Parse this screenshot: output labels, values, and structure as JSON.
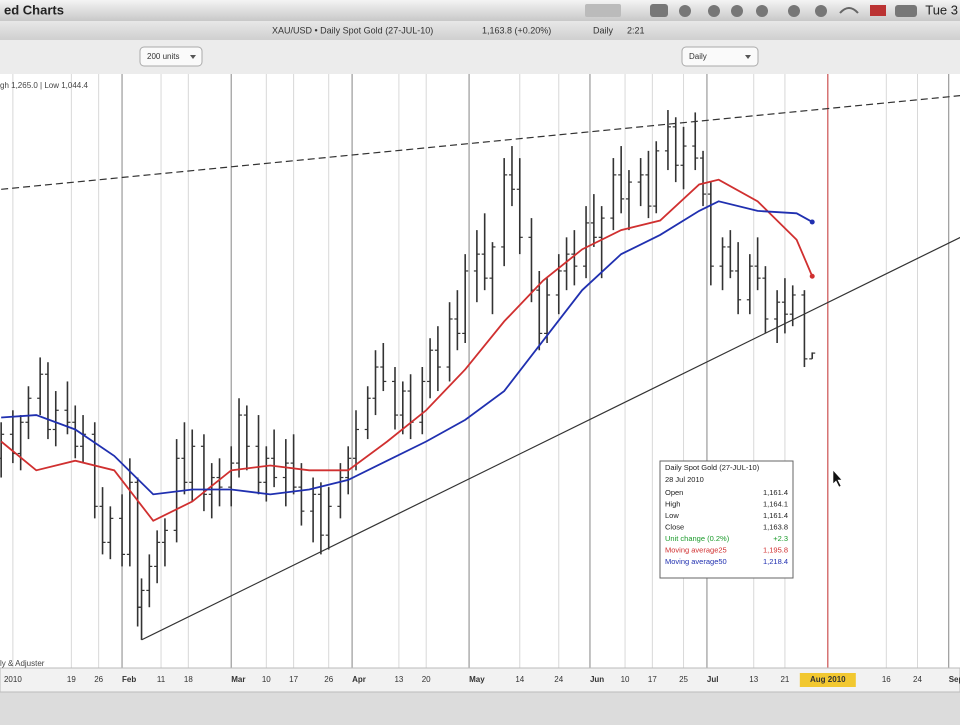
{
  "window": {
    "title": "ed Charts",
    "clock": "Tue 3"
  },
  "header": {
    "symbol": "XAU/USD • Daily Spot Gold (27-JUL-10)",
    "price": "1,163.8 (+0.20%)",
    "period": "Daily",
    "time": "2:21"
  },
  "toolbar": {
    "range": "200 units",
    "interval": "Daily"
  },
  "tooltip": {
    "title": "Daily Spot Gold (27-JUL-10)",
    "date": "28 Jul 2010",
    "rows": [
      {
        "label": "Open",
        "value": "1,161.4",
        "color": "#222222"
      },
      {
        "label": "High",
        "value": "1,164.1",
        "color": "#222222"
      },
      {
        "label": "Low",
        "value": "1,161.4",
        "color": "#222222"
      },
      {
        "label": "Close",
        "value": "1,163.8",
        "color": "#222222"
      },
      {
        "label": "Unit change (0.2%)",
        "value": "+2.3",
        "color": "#1a9a2a"
      },
      {
        "label": "Moving average25",
        "value": "1,195.8",
        "color": "#d03030"
      },
      {
        "label": "Moving average50",
        "value": "1,218.4",
        "color": "#2030b0"
      }
    ]
  },
  "chart_data": {
    "type": "ohlc",
    "range_label": "gh 1,265.0 | Low 1,044.4",
    "note": "ly & Adjuster",
    "color": "#333333",
    "x": [
      1,
      4,
      6,
      8,
      11,
      13,
      15,
      18,
      20,
      22,
      25,
      27,
      29,
      32,
      34,
      36,
      37,
      39,
      41,
      43,
      46,
      48,
      50,
      53,
      55,
      57,
      60,
      62,
      64,
      67,
      69,
      71,
      74,
      76,
      78,
      81,
      83,
      85,
      88,
      90,
      92,
      95,
      97,
      99,
      102,
      104,
      106,
      109,
      111,
      113,
      116,
      118,
      120,
      123,
      125,
      127,
      130,
      132,
      134,
      137,
      139,
      141,
      144,
      146,
      148,
      151,
      153,
      155,
      158,
      160,
      162,
      165,
      167,
      169,
      172,
      174,
      176,
      179,
      181,
      183,
      186,
      188,
      190,
      193,
      195,
      197,
      200,
      202,
      204,
      207,
      209
    ],
    "open": [
      1120,
      1130,
      1122,
      1135,
      1145,
      1155,
      1132,
      1140,
      1135,
      1125,
      1130,
      1100,
      1085,
      1095,
      1080,
      1110,
      1058,
      1065,
      1075,
      1085,
      1090,
      1120,
      1110,
      1125,
      1105,
      1112,
      1108,
      1118,
      1138,
      1125,
      1110,
      1120,
      1112,
      1118,
      1108,
      1098,
      1105,
      1088,
      1100,
      1112,
      1120,
      1132,
      1145,
      1158,
      1152,
      1138,
      1148,
      1135,
      1152,
      1165,
      1158,
      1178,
      1172,
      1198,
      1205,
      1195,
      1208,
      1238,
      1232,
      1212,
      1190,
      1172,
      1188,
      1198,
      1205,
      1200,
      1218,
      1212,
      1220,
      1238,
      1228,
      1235,
      1238,
      1225,
      1248,
      1258,
      1242,
      1250,
      1245,
      1230,
      1200,
      1208,
      1198,
      1186,
      1200,
      1195,
      1178,
      1185,
      1180,
      1188,
      1161.4
    ],
    "high": [
      1135,
      1140,
      1138,
      1150,
      1162,
      1160,
      1148,
      1152,
      1142,
      1138,
      1135,
      1108,
      1100,
      1105,
      1120,
      1112,
      1070,
      1080,
      1090,
      1095,
      1128,
      1135,
      1132,
      1130,
      1118,
      1120,
      1125,
      1145,
      1142,
      1138,
      1125,
      1132,
      1128,
      1130,
      1118,
      1112,
      1110,
      1108,
      1118,
      1125,
      1140,
      1150,
      1165,
      1168,
      1158,
      1152,
      1155,
      1158,
      1170,
      1175,
      1185,
      1190,
      1205,
      1215,
      1222,
      1210,
      1245,
      1250,
      1245,
      1220,
      1198,
      1195,
      1205,
      1212,
      1215,
      1225,
      1230,
      1225,
      1245,
      1250,
      1240,
      1245,
      1248,
      1252,
      1265,
      1262,
      1258,
      1264,
      1248,
      1235,
      1212,
      1215,
      1210,
      1205,
      1212,
      1200,
      1190,
      1195,
      1192,
      1190,
      1164.1
    ],
    "low": [
      1112,
      1118,
      1115,
      1128,
      1138,
      1128,
      1125,
      1130,
      1120,
      1118,
      1095,
      1080,
      1078,
      1075,
      1075,
      1050,
      1044.4,
      1058,
      1068,
      1075,
      1085,
      1105,
      1102,
      1098,
      1095,
      1100,
      1100,
      1112,
      1115,
      1105,
      1102,
      1108,
      1100,
      1105,
      1092,
      1085,
      1080,
      1082,
      1095,
      1105,
      1115,
      1128,
      1138,
      1148,
      1132,
      1130,
      1128,
      1130,
      1145,
      1148,
      1152,
      1165,
      1168,
      1185,
      1190,
      1180,
      1200,
      1225,
      1205,
      1185,
      1165,
      1168,
      1180,
      1190,
      1192,
      1195,
      1208,
      1195,
      1215,
      1222,
      1215,
      1225,
      1220,
      1222,
      1240,
      1235,
      1232,
      1240,
      1225,
      1192,
      1190,
      1195,
      1180,
      1180,
      1190,
      1172,
      1168,
      1172,
      1175,
      1158,
      1161.4
    ],
    "close": [
      1130,
      1122,
      1135,
      1145,
      1155,
      1132,
      1140,
      1135,
      1125,
      1130,
      1100,
      1085,
      1095,
      1080,
      1110,
      1058,
      1065,
      1075,
      1085,
      1090,
      1120,
      1110,
      1125,
      1105,
      1112,
      1108,
      1118,
      1138,
      1125,
      1110,
      1120,
      1112,
      1118,
      1108,
      1098,
      1105,
      1088,
      1100,
      1112,
      1120,
      1132,
      1145,
      1158,
      1152,
      1138,
      1148,
      1135,
      1152,
      1165,
      1158,
      1178,
      1172,
      1198,
      1205,
      1195,
      1208,
      1238,
      1232,
      1212,
      1190,
      1172,
      1188,
      1198,
      1205,
      1200,
      1218,
      1212,
      1220,
      1238,
      1228,
      1235,
      1238,
      1225,
      1248,
      1258,
      1242,
      1250,
      1245,
      1230,
      1200,
      1208,
      1198,
      1186,
      1200,
      1195,
      1178,
      1185,
      1180,
      1188,
      1161.4,
      1163.8
    ],
    "series": [
      {
        "color": "#d03030",
        "x": [
          1,
          10,
          20,
          30,
          40,
          50,
          60,
          70,
          80,
          90,
          100,
          110,
          120,
          130,
          140,
          150,
          160,
          170,
          180,
          185,
          195,
          205,
          209
        ],
        "values": [
          1127,
          1115,
          1119,
          1115,
          1094,
          1102,
          1115,
          1117,
          1115,
          1115,
          1127,
          1140,
          1157,
          1177,
          1194,
          1207,
          1215,
          1219,
          1234,
          1236,
          1227,
          1211,
          1195.8
        ]
      },
      {
        "color": "#2030b0",
        "x": [
          1,
          10,
          20,
          30,
          40,
          50,
          60,
          70,
          80,
          90,
          100,
          110,
          120,
          130,
          140,
          150,
          160,
          170,
          180,
          185,
          195,
          205,
          209
        ],
        "values": [
          1137,
          1138,
          1132,
          1121,
          1105,
          1107,
          1107,
          1105,
          1107,
          1111,
          1119,
          1127,
          1136,
          1148,
          1169,
          1190,
          1205,
          1213,
          1223,
          1227,
          1223,
          1222,
          1218.4
        ]
      }
    ],
    "trendlines": [
      {
        "x": [
          1,
          247
        ],
        "y": [
          1232,
          1271
        ],
        "dashed": true
      },
      {
        "x": [
          37,
          247
        ],
        "y": [
          1044.4,
          1212
        ],
        "dashed": false
      }
    ],
    "xlim": [
      0.7,
      246.9
    ],
    "ylim": [
      1032.7,
      1277.5
    ],
    "xticks": [
      {
        "value": 4,
        "label": "2010"
      },
      19,
      26,
      {
        "value": 32,
        "label": "Feb"
      },
      {
        "value": 42,
        "label": "11"
      },
      {
        "value": 49,
        "label": "18"
      },
      {
        "value": 60,
        "label": "Mar"
      },
      {
        "value": 69,
        "label": "10"
      },
      {
        "value": 76,
        "label": "17"
      },
      {
        "value": 85,
        "label": "26"
      },
      {
        "value": 91,
        "label": "Apr"
      },
      {
        "value": 103,
        "label": "13"
      },
      {
        "value": 110,
        "label": "20"
      },
      {
        "value": 121,
        "label": "May"
      },
      {
        "value": 134,
        "label": "14"
      },
      {
        "value": 144,
        "label": "24"
      },
      {
        "value": 152,
        "label": "Jun"
      },
      {
        "value": 161,
        "label": "10"
      },
      {
        "value": 168,
        "label": "17"
      },
      {
        "value": 176,
        "label": "25"
      },
      {
        "value": 182,
        "label": "Jul"
      },
      {
        "value": 194,
        "label": "13"
      },
      {
        "value": 202,
        "label": "21"
      },
      {
        "value": 213,
        "label": "Aug 2010"
      },
      {
        "value": 228,
        "label": "16"
      },
      {
        "value": 236,
        "label": "24"
      },
      {
        "value": 244,
        "label": "Sep"
      }
    ],
    "highlighted_xtick": 23,
    "grid": true
  }
}
